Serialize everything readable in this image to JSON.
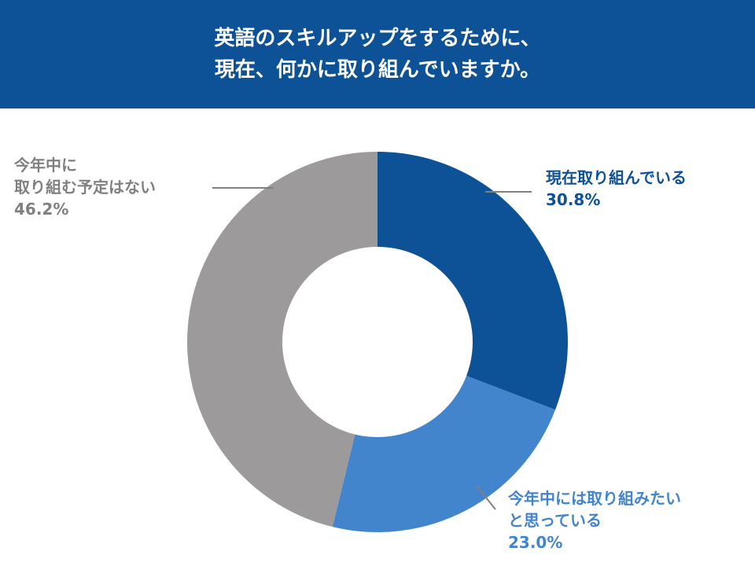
{
  "header": {
    "title_line1": "英語のスキルアップをするために、",
    "title_line2": "現在、何かに取り組んでいますか。"
  },
  "colors": {
    "header_bg": "#0d5296",
    "slice_current": "#0d5296",
    "slice_want": "#4285cc",
    "slice_none": "#9c9a9b",
    "leader_line": "#808080"
  },
  "chart_data": {
    "type": "pie",
    "variant": "donut",
    "title": "英語のスキルアップをするために、現在、何かに取り組んでいますか。",
    "start_angle": "12 o'clock, clockwise",
    "slices": [
      {
        "label_lines": [
          "現在取り組んでいる"
        ],
        "value": 30.8,
        "value_label": "30.8%",
        "color": "#0d5296",
        "label_position": "upper-right"
      },
      {
        "label_lines": [
          "今年中には取り組みたい",
          "と思っている"
        ],
        "value": 23.0,
        "value_label": "23.0%",
        "color": "#4285cc",
        "label_position": "lower-right"
      },
      {
        "label_lines": [
          "今年中に",
          "取り組む予定はない"
        ],
        "value": 46.2,
        "value_label": "46.2%",
        "color": "#9c9a9b",
        "label_position": "upper-left"
      }
    ]
  }
}
